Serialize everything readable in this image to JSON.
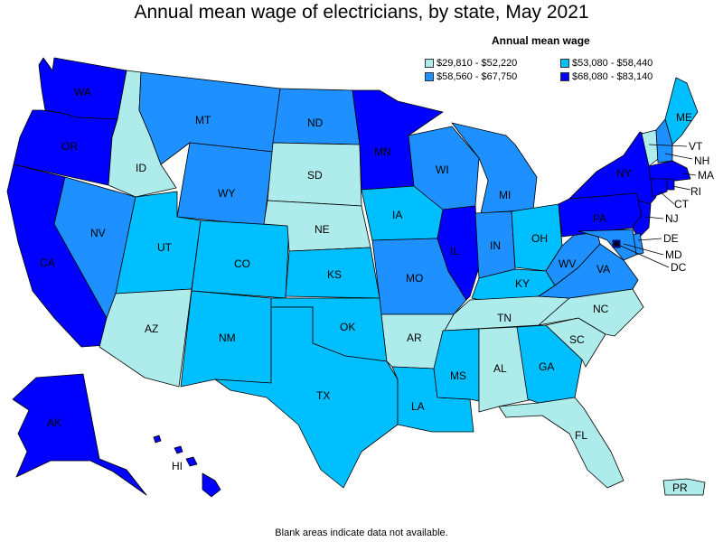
{
  "title": "Annual mean wage of electricians, by state, May 2021",
  "legend": {
    "title": "Annual mean wage",
    "bins": [
      {
        "label": "$29,810 - $52,220",
        "color": "#aeecec"
      },
      {
        "label": "$53,080 - $58,440",
        "color": "#00bfff"
      },
      {
        "label": "$58,560 - $67,750",
        "color": "#1e90ff"
      },
      {
        "label": "$68,080 - $83,140",
        "color": "#0000ff"
      }
    ]
  },
  "footnote": "Blank areas indicate data not available.",
  "states": {
    "WA": 3,
    "OR": 3,
    "CA": 3,
    "ID": 0,
    "NV": 2,
    "MT": 2,
    "WY": 2,
    "UT": 1,
    "AZ": 0,
    "CO": 1,
    "NM": 1,
    "ND": 2,
    "SD": 0,
    "NE": 0,
    "KS": 1,
    "OK": 1,
    "TX": 1,
    "MN": 3,
    "IA": 1,
    "MO": 2,
    "AR": 0,
    "LA": 1,
    "WI": 2,
    "IL": 3,
    "MI": 2,
    "IN": 2,
    "OH": 1,
    "KY": 1,
    "TN": 0,
    "MS": 1,
    "AL": 0,
    "GA": 1,
    "FL": 0,
    "SC": 0,
    "NC": 0,
    "VA": 2,
    "WV": 2,
    "PA": 3,
    "NY": 3,
    "ME": 1,
    "VT": 0,
    "NH": 2,
    "MA": 3,
    "RI": 3,
    "CT": 3,
    "NJ": 3,
    "DE": 2,
    "MD": 2,
    "DC": 3,
    "AK": 3,
    "HI": 3,
    "PR": 0
  }
}
